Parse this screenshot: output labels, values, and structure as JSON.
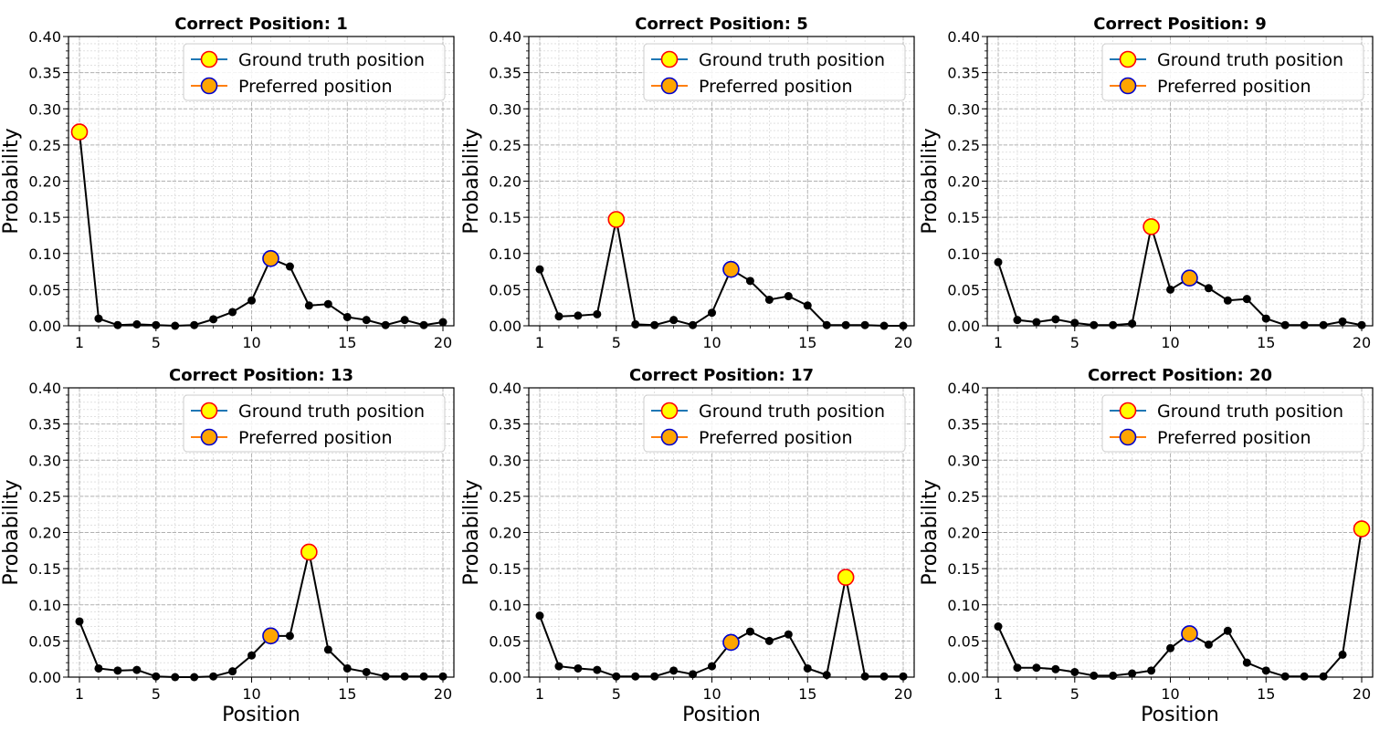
{
  "chart_data": [
    {
      "type": "line",
      "title": "Correct Position: 1",
      "xlabel": "",
      "ylabel": "Probability",
      "xticks": [
        "1",
        "5",
        "10",
        "15",
        "20"
      ],
      "yticks": [
        "0.00",
        "0.05",
        "0.10",
        "0.15",
        "0.20",
        "0.25",
        "0.30",
        "0.35",
        "0.40"
      ],
      "ylim": [
        0,
        0.4
      ],
      "xlim": [
        1,
        20
      ],
      "grid": true,
      "legend_position": "top-right",
      "x": [
        1,
        2,
        3,
        4,
        5,
        6,
        7,
        8,
        9,
        10,
        11,
        12,
        13,
        14,
        15,
        16,
        17,
        18,
        19,
        20
      ],
      "values": [
        0.268,
        0.01,
        0.001,
        0.002,
        0.001,
        0.0,
        0.001,
        0.009,
        0.019,
        0.035,
        0.093,
        0.082,
        0.028,
        0.03,
        0.012,
        0.008,
        0.001,
        0.008,
        0.001,
        0.005
      ],
      "ground_truth_position": 1,
      "preferred_position": 11,
      "legend": [
        "Ground truth position",
        "Preferred position"
      ]
    },
    {
      "type": "line",
      "title": "Correct Position: 5",
      "xlabel": "",
      "ylabel": "Probability",
      "xticks": [
        "1",
        "5",
        "10",
        "15",
        "20"
      ],
      "yticks": [
        "0.00",
        "0.05",
        "0.10",
        "0.15",
        "0.20",
        "0.25",
        "0.30",
        "0.35",
        "0.40"
      ],
      "ylim": [
        0,
        0.4
      ],
      "xlim": [
        1,
        20
      ],
      "grid": true,
      "legend_position": "top-right",
      "x": [
        1,
        2,
        3,
        4,
        5,
        6,
        7,
        8,
        9,
        10,
        11,
        12,
        13,
        14,
        15,
        16,
        17,
        18,
        19,
        20
      ],
      "values": [
        0.078,
        0.013,
        0.014,
        0.016,
        0.147,
        0.002,
        0.001,
        0.008,
        0.001,
        0.018,
        0.078,
        0.062,
        0.036,
        0.041,
        0.028,
        0.001,
        0.001,
        0.001,
        0.0,
        0.0
      ],
      "ground_truth_position": 5,
      "preferred_position": 11,
      "legend": [
        "Ground truth position",
        "Preferred position"
      ]
    },
    {
      "type": "line",
      "title": "Correct Position: 9",
      "xlabel": "",
      "ylabel": "Probability",
      "xticks": [
        "1",
        "5",
        "10",
        "15",
        "20"
      ],
      "yticks": [
        "0.00",
        "0.05",
        "0.10",
        "0.15",
        "0.20",
        "0.25",
        "0.30",
        "0.35",
        "0.40"
      ],
      "ylim": [
        0,
        0.4
      ],
      "xlim": [
        1,
        20
      ],
      "grid": true,
      "legend_position": "top-right",
      "x": [
        1,
        2,
        3,
        4,
        5,
        6,
        7,
        8,
        9,
        10,
        11,
        12,
        13,
        14,
        15,
        16,
        17,
        18,
        19,
        20
      ],
      "values": [
        0.088,
        0.008,
        0.005,
        0.009,
        0.004,
        0.001,
        0.001,
        0.003,
        0.137,
        0.05,
        0.066,
        0.052,
        0.035,
        0.037,
        0.01,
        0.001,
        0.001,
        0.001,
        0.006,
        0.001
      ],
      "ground_truth_position": 9,
      "preferred_position": 11,
      "legend": [
        "Ground truth position",
        "Preferred position"
      ]
    },
    {
      "type": "line",
      "title": "Correct Position: 13",
      "xlabel": "Position",
      "ylabel": "Probability",
      "xticks": [
        "1",
        "5",
        "10",
        "15",
        "20"
      ],
      "yticks": [
        "0.00",
        "0.05",
        "0.10",
        "0.15",
        "0.20",
        "0.25",
        "0.30",
        "0.35",
        "0.40"
      ],
      "ylim": [
        0,
        0.4
      ],
      "xlim": [
        1,
        20
      ],
      "grid": true,
      "legend_position": "top-right",
      "x": [
        1,
        2,
        3,
        4,
        5,
        6,
        7,
        8,
        9,
        10,
        11,
        12,
        13,
        14,
        15,
        16,
        17,
        18,
        19,
        20
      ],
      "values": [
        0.077,
        0.012,
        0.009,
        0.01,
        0.001,
        0.0,
        0.0,
        0.001,
        0.008,
        0.03,
        0.057,
        0.057,
        0.173,
        0.038,
        0.012,
        0.007,
        0.001,
        0.001,
        0.001,
        0.001
      ],
      "ground_truth_position": 13,
      "preferred_position": 11,
      "legend": [
        "Ground truth position",
        "Preferred position"
      ]
    },
    {
      "type": "line",
      "title": "Correct Position: 17",
      "xlabel": "Position",
      "ylabel": "Probability",
      "xticks": [
        "1",
        "5",
        "10",
        "15",
        "20"
      ],
      "yticks": [
        "0.00",
        "0.05",
        "0.10",
        "0.15",
        "0.20",
        "0.25",
        "0.30",
        "0.35",
        "0.40"
      ],
      "ylim": [
        0,
        0.4
      ],
      "xlim": [
        1,
        20
      ],
      "grid": true,
      "legend_position": "top-right",
      "x": [
        1,
        2,
        3,
        4,
        5,
        6,
        7,
        8,
        9,
        10,
        11,
        12,
        13,
        14,
        15,
        16,
        17,
        18,
        19,
        20
      ],
      "values": [
        0.085,
        0.015,
        0.012,
        0.01,
        0.001,
        0.001,
        0.001,
        0.009,
        0.004,
        0.015,
        0.048,
        0.063,
        0.05,
        0.059,
        0.012,
        0.003,
        0.138,
        0.001,
        0.001,
        0.001
      ],
      "ground_truth_position": 17,
      "preferred_position": 11,
      "legend": [
        "Ground truth position",
        "Preferred position"
      ]
    },
    {
      "type": "line",
      "title": "Correct Position: 20",
      "xlabel": "Position",
      "ylabel": "Probability",
      "xticks": [
        "1",
        "5",
        "10",
        "15",
        "20"
      ],
      "yticks": [
        "0.00",
        "0.05",
        "0.10",
        "0.15",
        "0.20",
        "0.25",
        "0.30",
        "0.35",
        "0.40"
      ],
      "ylim": [
        0,
        0.4
      ],
      "xlim": [
        1,
        20
      ],
      "grid": true,
      "legend_position": "top-right",
      "x": [
        1,
        2,
        3,
        4,
        5,
        6,
        7,
        8,
        9,
        10,
        11,
        12,
        13,
        14,
        15,
        16,
        17,
        18,
        19,
        20
      ],
      "values": [
        0.07,
        0.013,
        0.013,
        0.011,
        0.007,
        0.002,
        0.002,
        0.005,
        0.009,
        0.04,
        0.06,
        0.045,
        0.064,
        0.02,
        0.009,
        0.001,
        0.001,
        0.001,
        0.031,
        0.205
      ],
      "ground_truth_position": 20,
      "preferred_position": 11,
      "legend": [
        "Ground truth position",
        "Preferred position"
      ]
    }
  ],
  "colors": {
    "line": "#000000",
    "marker": "#000000",
    "ground_truth_fill": "#ffff00",
    "ground_truth_edge": "#ff0000",
    "preferred_fill": "#ffa500",
    "preferred_edge": "#0000cd",
    "legend_line_gt": "#1f77b4",
    "legend_line_pref": "#ff7f0e",
    "grid_major": "#b0b0b0",
    "grid_minor": "#d0d0d0"
  }
}
